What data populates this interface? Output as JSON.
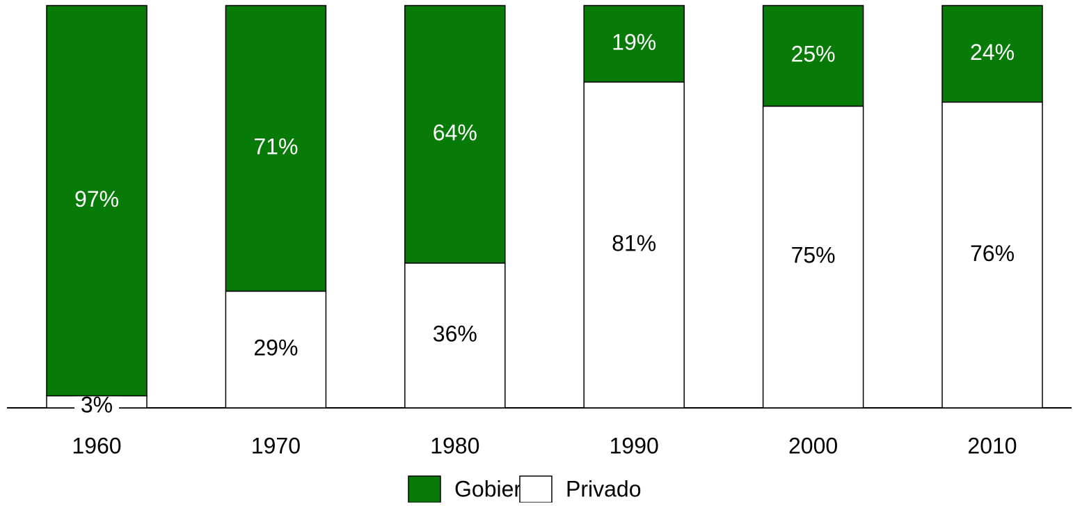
{
  "chart_data": {
    "type": "stacked_bar",
    "categories": [
      "1960",
      "1970",
      "1980",
      "1990",
      "2000",
      "2010"
    ],
    "series": [
      {
        "name": "Gobierno",
        "color": "#087a08",
        "values": [
          97,
          71,
          64,
          19,
          25,
          24
        ],
        "value_labels": [
          "97%",
          "71%",
          "64%",
          "19%",
          "25%",
          "24%"
        ]
      },
      {
        "name": "Privado",
        "color": "#ffffff",
        "values": [
          3,
          29,
          36,
          81,
          75,
          76
        ],
        "value_labels": [
          "3%",
          "29%",
          "36%",
          "81%",
          "75%",
          "76%"
        ]
      }
    ],
    "ylim": [
      0,
      100
    ],
    "legend": "bottom"
  }
}
